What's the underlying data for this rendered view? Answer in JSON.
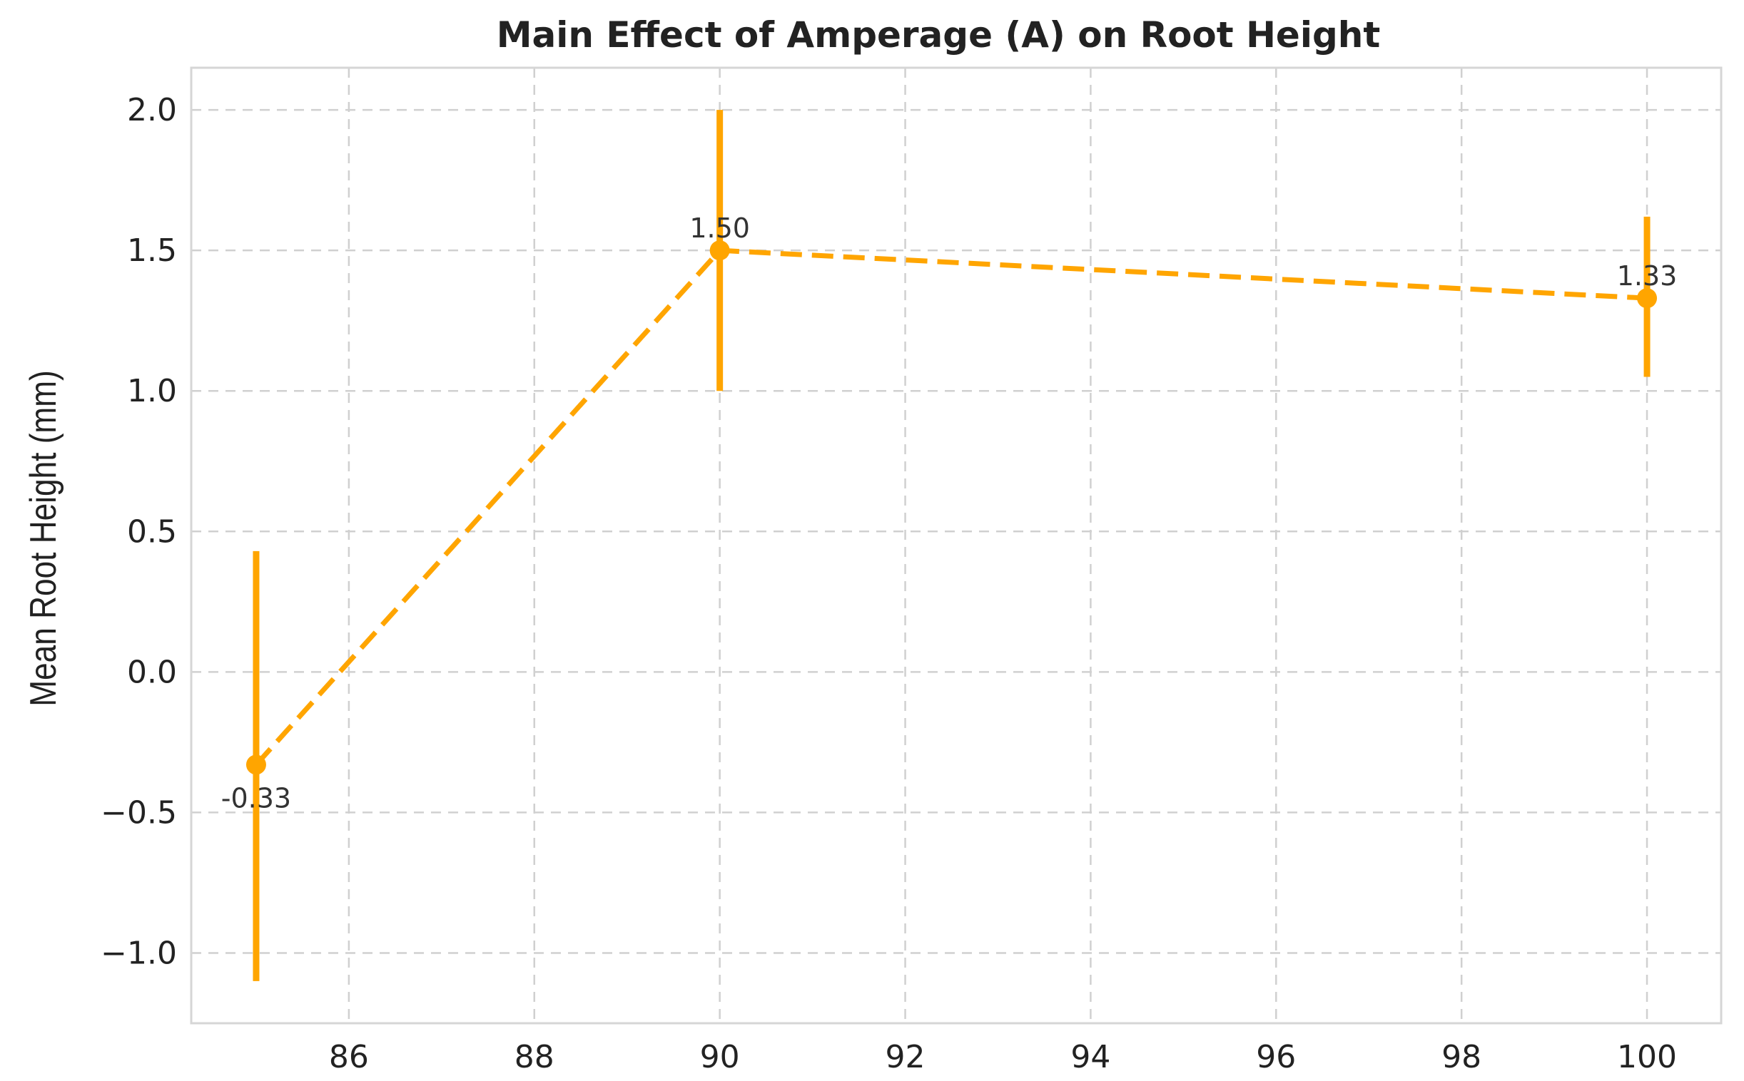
{
  "chart_data": {
    "type": "line",
    "title": "Main Effect of Amperage (A) on Root Height",
    "xlabel": "",
    "ylabel": "Mean Root Height (mm)",
    "xlim": [
      84.3,
      100.8
    ],
    "ylim": [
      -1.25,
      2.15
    ],
    "xticks": [
      86,
      88,
      90,
      92,
      94,
      96,
      98,
      100
    ],
    "yticks": [
      -1.0,
      -0.5,
      0.0,
      0.5,
      1.0,
      1.5,
      2.0
    ],
    "ytick_labels": [
      "−1.0",
      "−0.5",
      "0.0",
      "0.5",
      "1.0",
      "1.5",
      "2.0"
    ],
    "grid": true,
    "line_style": "dashed",
    "color": "#FFA500",
    "series": [
      {
        "x": [
          85,
          90,
          100
        ],
        "y": [
          -0.33,
          1.5,
          1.33
        ],
        "error_low": [
          -1.1,
          1.0,
          1.05
        ],
        "error_high": [
          0.43,
          2.0,
          1.62
        ],
        "data_labels": [
          "-0.33",
          "1.50",
          "1.33"
        ]
      }
    ]
  }
}
